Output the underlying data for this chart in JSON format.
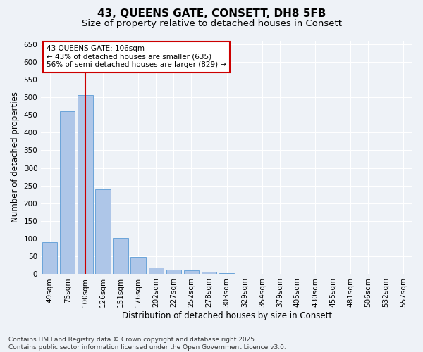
{
  "title1": "43, QUEENS GATE, CONSETT, DH8 5FB",
  "title2": "Size of property relative to detached houses in Consett",
  "xlabel": "Distribution of detached houses by size in Consett",
  "ylabel": "Number of detached properties",
  "categories": [
    "49sqm",
    "75sqm",
    "100sqm",
    "126sqm",
    "151sqm",
    "176sqm",
    "202sqm",
    "227sqm",
    "252sqm",
    "278sqm",
    "303sqm",
    "329sqm",
    "354sqm",
    "379sqm",
    "405sqm",
    "430sqm",
    "455sqm",
    "481sqm",
    "506sqm",
    "532sqm",
    "557sqm"
  ],
  "values": [
    90,
    460,
    505,
    240,
    103,
    48,
    18,
    13,
    10,
    6,
    2,
    0,
    0,
    0,
    1,
    0,
    0,
    0,
    0,
    1,
    0
  ],
  "bar_color": "#aec6e8",
  "bar_edge_color": "#5b9bd5",
  "red_line_index": 2,
  "annotation_line1": "43 QUEENS GATE: 106sqm",
  "annotation_line2": "← 43% of detached houses are smaller (635)",
  "annotation_line3": "56% of semi-detached houses are larger (829) →",
  "annotation_box_color": "#ffffff",
  "annotation_box_edge": "#cc0000",
  "red_line_color": "#cc0000",
  "ylim": [
    0,
    660
  ],
  "yticks": [
    0,
    50,
    100,
    150,
    200,
    250,
    300,
    350,
    400,
    450,
    500,
    550,
    600,
    650
  ],
  "bg_color": "#eef2f7",
  "grid_color": "#ffffff",
  "footer": "Contains HM Land Registry data © Crown copyright and database right 2025.\nContains public sector information licensed under the Open Government Licence v3.0.",
  "title_fontsize": 11,
  "subtitle_fontsize": 9.5,
  "axis_label_fontsize": 8.5,
  "tick_fontsize": 7.5,
  "annotation_fontsize": 7.5,
  "footer_fontsize": 6.5
}
